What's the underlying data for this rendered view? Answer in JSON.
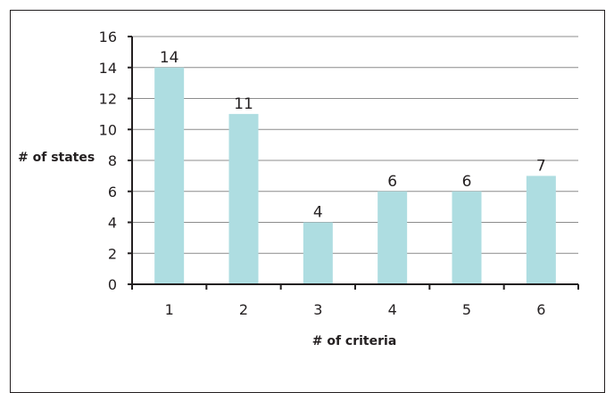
{
  "chart_data": {
    "type": "bar",
    "categories": [
      "1",
      "2",
      "3",
      "4",
      "5",
      "6"
    ],
    "values": [
      14,
      11,
      4,
      6,
      6,
      7
    ],
    "data_labels": [
      "14",
      "11",
      "4",
      "6",
      "6",
      "7"
    ],
    "xlabel": "# of criteria",
    "ylabel": "# of states",
    "ylim": [
      0,
      16
    ],
    "yticks": [
      "0",
      "2",
      "4",
      "6",
      "8",
      "10",
      "12",
      "14",
      "16"
    ],
    "grid": true,
    "bar_color": "#aedde1",
    "gridline_color": "#8c8c8c",
    "axis_color": "#231f20"
  }
}
